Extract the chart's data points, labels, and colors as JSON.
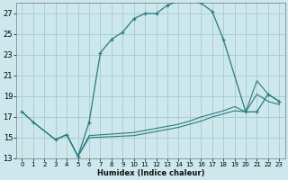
{
  "xlabel": "Humidex (Indice chaleur)",
  "background_color": "#cde8ec",
  "grid_color": "#aacdd4",
  "line_color": "#2a7a7e",
  "xlim": [
    -0.5,
    23.5
  ],
  "ylim": [
    13,
    28
  ],
  "yticks": [
    13,
    15,
    17,
    19,
    21,
    23,
    25,
    27
  ],
  "xticks": [
    0,
    1,
    2,
    3,
    4,
    5,
    6,
    7,
    8,
    9,
    10,
    11,
    12,
    13,
    14,
    15,
    16,
    17,
    18,
    19,
    20,
    21,
    22,
    23
  ],
  "series1_x": [
    0,
    1,
    3,
    4,
    5,
    6,
    7,
    8,
    9,
    10,
    11,
    12,
    13,
    14,
    15,
    16,
    17,
    18,
    20,
    21,
    22,
    23
  ],
  "series1_y": [
    17.5,
    16.5,
    14.8,
    15.3,
    13.2,
    16.5,
    23.2,
    24.5,
    25.2,
    26.5,
    27.0,
    27.0,
    27.8,
    28.2,
    28.2,
    28.0,
    27.2,
    24.5,
    17.5,
    17.5,
    19.2,
    18.5
  ],
  "series2_x": [
    0,
    1,
    3,
    4,
    5,
    6,
    10,
    11,
    12,
    13,
    14,
    15,
    16,
    17,
    18,
    19,
    20,
    21,
    22,
    23
  ],
  "series2_y": [
    17.5,
    16.5,
    14.8,
    15.3,
    13.2,
    15.0,
    15.2,
    15.4,
    15.6,
    15.8,
    16.0,
    16.3,
    16.6,
    17.0,
    17.3,
    17.6,
    17.5,
    19.2,
    18.5,
    18.2
  ],
  "series3_x": [
    3,
    4,
    5,
    6,
    10,
    11,
    12,
    13,
    14,
    15,
    16,
    17,
    18,
    19,
    20,
    21,
    22,
    23
  ],
  "series3_y": [
    14.8,
    15.3,
    13.2,
    15.2,
    15.5,
    15.7,
    15.9,
    16.1,
    16.3,
    16.6,
    17.0,
    17.3,
    17.6,
    18.0,
    17.5,
    20.5,
    19.2,
    18.5
  ]
}
